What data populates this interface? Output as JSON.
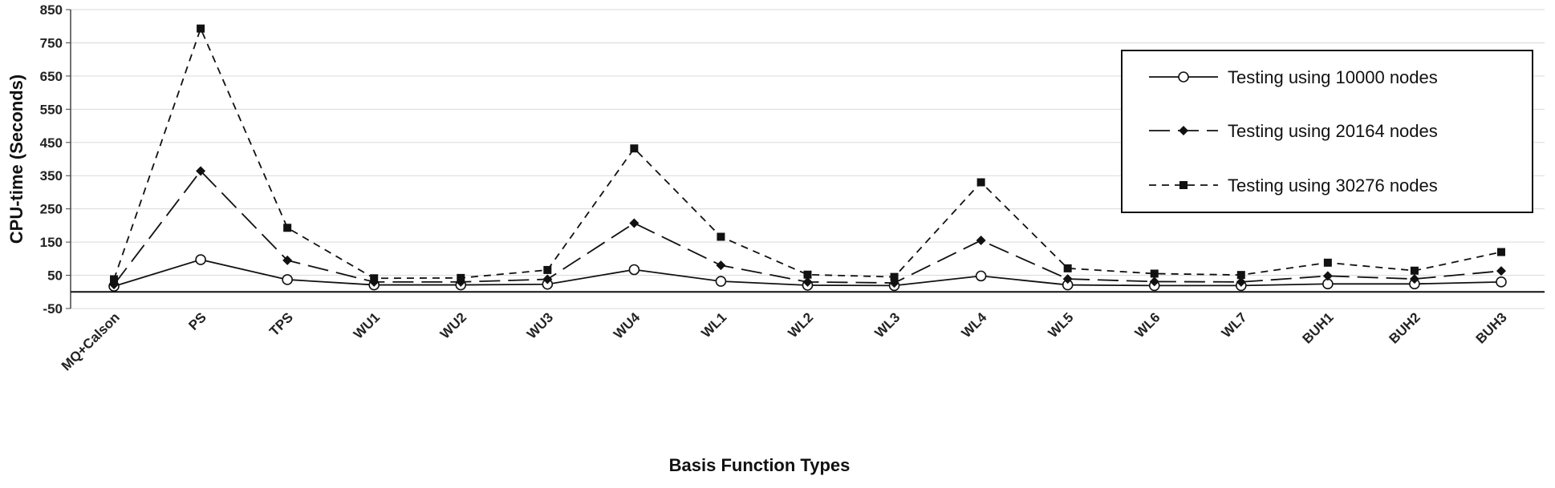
{
  "chart_data": {
    "type": "line",
    "title": "",
    "xlabel": "Basis Function Types",
    "ylabel": "CPU-time (Seconds)",
    "ylim": [
      -50,
      850
    ],
    "yticks": [
      -50,
      50,
      150,
      250,
      350,
      450,
      550,
      650,
      750,
      850
    ],
    "grid": "horizontal",
    "legend_position": "top-right",
    "categories": [
      "MQ+Calson",
      "PS",
      "TPS",
      "WU1",
      "WU2",
      "WU3",
      "WU4",
      "WL1",
      "WL2",
      "WL3",
      "WL4",
      "WL5",
      "WL6",
      "WL7",
      "BUH1",
      "BUH2",
      "BUH3"
    ],
    "series": [
      {
        "name": "Testing using 10000 nodes",
        "marker": "open-circle",
        "line": "solid",
        "values": [
          17,
          97,
          37,
          21,
          21,
          23,
          67,
          32,
          20,
          19,
          48,
          21,
          19,
          19,
          24,
          24,
          30
        ]
      },
      {
        "name": "Testing using 20164 nodes",
        "marker": "diamond",
        "line": "long-dash",
        "values": [
          22,
          364,
          95,
          30,
          30,
          38,
          207,
          80,
          30,
          27,
          155,
          39,
          31,
          30,
          48,
          39,
          63
        ]
      },
      {
        "name": "Testing using 30276 nodes",
        "marker": "square",
        "line": "short-dash",
        "values": [
          38,
          793,
          193,
          41,
          42,
          66,
          432,
          166,
          52,
          45,
          330,
          71,
          55,
          51,
          88,
          64,
          120
        ]
      }
    ]
  }
}
